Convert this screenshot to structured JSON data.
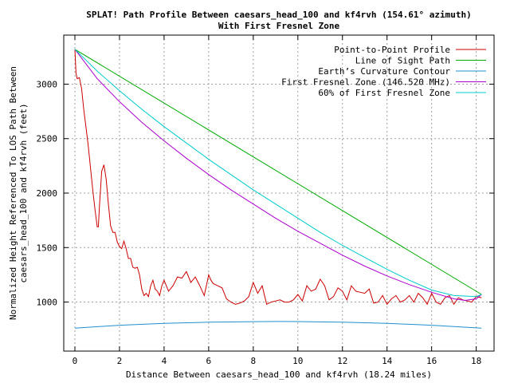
{
  "chart_data": {
    "type": "line",
    "title_line1": "SPLAT! Path Profile Between caesars_head_100 and kf4rvh (154.61° azimuth)",
    "title_line2": "With First Fresnel Zone",
    "xlabel": "Distance Between caesars_head_100 and kf4rvh (18.24 miles)",
    "ylabel_line1": "Normalized Height Referenced To LOS Path Between",
    "ylabel_line2": "caesars_head_100 and kf4rvh (feet)",
    "xlim": [
      -0.5,
      18.8
    ],
    "ylim": [
      550,
      3450
    ],
    "grid": true,
    "legend_position": "top-right",
    "x_ticks": [
      0,
      2,
      4,
      6,
      8,
      10,
      12,
      14,
      16,
      18
    ],
    "y_ticks": [
      1000,
      1500,
      2000,
      2500,
      3000
    ],
    "series": [
      {
        "name": "Point-to-Point Profile",
        "color": "#cc0000",
        "x": [
          0,
          0.05,
          0.1,
          0.2,
          0.3,
          0.4,
          0.5,
          0.6,
          0.7,
          0.8,
          0.9,
          1.0,
          1.05,
          1.1,
          1.2,
          1.3,
          1.4,
          1.5,
          1.6,
          1.7,
          1.8,
          1.9,
          2.0,
          2.1,
          2.2,
          2.3,
          2.4,
          2.5,
          2.6,
          2.7,
          2.8,
          2.9,
          3.0,
          3.1,
          3.2,
          3.3,
          3.4,
          3.5,
          3.6,
          3.7,
          3.8,
          3.9,
          4.0,
          4.2,
          4.4,
          4.6,
          4.8,
          5.0,
          5.2,
          5.4,
          5.6,
          5.8,
          6.0,
          6.1,
          6.2,
          6.4,
          6.6,
          6.8,
          7.0,
          7.2,
          7.4,
          7.6,
          7.8,
          8.0,
          8.2,
          8.4,
          8.6,
          8.8,
          9.0,
          9.2,
          9.4,
          9.6,
          9.8,
          10.0,
          10.2,
          10.4,
          10.6,
          10.8,
          11.0,
          11.2,
          11.4,
          11.6,
          11.8,
          12.0,
          12.2,
          12.4,
          12.6,
          12.8,
          13.0,
          13.2,
          13.4,
          13.6,
          13.8,
          14.0,
          14.2,
          14.4,
          14.6,
          14.8,
          15.0,
          15.2,
          15.4,
          15.6,
          15.8,
          16.0,
          16.2,
          16.4,
          16.6,
          16.8,
          17.0,
          17.2,
          17.4,
          17.6,
          17.8,
          18.0,
          18.24
        ],
        "values": [
          3320,
          3100,
          3050,
          3060,
          2960,
          2760,
          2600,
          2430,
          2230,
          2030,
          1850,
          1690,
          1690,
          1880,
          2200,
          2260,
          2130,
          1900,
          1700,
          1640,
          1640,
          1550,
          1510,
          1490,
          1560,
          1490,
          1400,
          1400,
          1320,
          1310,
          1320,
          1250,
          1120,
          1060,
          1080,
          1050,
          1150,
          1200,
          1120,
          1100,
          1060,
          1150,
          1200,
          1100,
          1150,
          1230,
          1220,
          1280,
          1180,
          1230,
          1150,
          1060,
          1250,
          1200,
          1170,
          1150,
          1130,
          1030,
          1000,
          980,
          990,
          1010,
          1050,
          1180,
          1080,
          1150,
          980,
          1000,
          1010,
          1020,
          1000,
          1000,
          1020,
          1070,
          1010,
          1150,
          1100,
          1120,
          1210,
          1150,
          1020,
          1050,
          1130,
          1100,
          1020,
          1150,
          1100,
          1090,
          1080,
          1120,
          990,
          1000,
          1060,
          980,
          1030,
          1060,
          1000,
          1020,
          1060,
          1000,
          1080,
          1040,
          980,
          1080,
          1000,
          980,
          1040,
          1060,
          980,
          1040,
          1020,
          1010,
          1000,
          1050,
          1040
        ]
      },
      {
        "name": "Line of Sight Path",
        "color": "#00aa00",
        "x": [
          0,
          18.24
        ],
        "values": [
          3320,
          1070
        ]
      },
      {
        "name": "Earth’s Curvature Contour",
        "color": "#1f8fcf",
        "x": [
          0,
          2,
          4,
          6,
          8,
          9.12,
          10,
          12,
          14,
          16,
          18.24
        ],
        "values": [
          760,
          787,
          805,
          815,
          820,
          822,
          821,
          815,
          805,
          787,
          760
        ]
      },
      {
        "name": "First Fresnel Zone (146.520 MHz)",
        "color": "#aa00cc",
        "x": [
          0,
          1,
          2,
          3,
          4,
          5,
          6,
          7,
          8,
          9,
          10,
          11,
          12,
          13,
          14,
          15,
          16,
          17,
          17.5,
          18,
          18.24
        ],
        "values": [
          3320,
          3050,
          2840,
          2650,
          2480,
          2320,
          2170,
          2030,
          1900,
          1770,
          1650,
          1540,
          1430,
          1330,
          1240,
          1160,
          1090,
          1030,
          1015,
          1030,
          1070
        ]
      },
      {
        "name": "60% of First Fresnel Zone",
        "color": "#00cccc",
        "x": [
          0,
          1,
          2,
          3,
          4,
          5,
          6,
          7,
          8,
          9,
          10,
          11,
          12,
          13,
          14,
          15,
          16,
          17,
          18,
          18.24
        ],
        "values": [
          3320,
          3120,
          2940,
          2770,
          2610,
          2460,
          2310,
          2170,
          2030,
          1900,
          1770,
          1640,
          1520,
          1410,
          1300,
          1200,
          1110,
          1060,
          1050,
          1070
        ]
      }
    ]
  }
}
